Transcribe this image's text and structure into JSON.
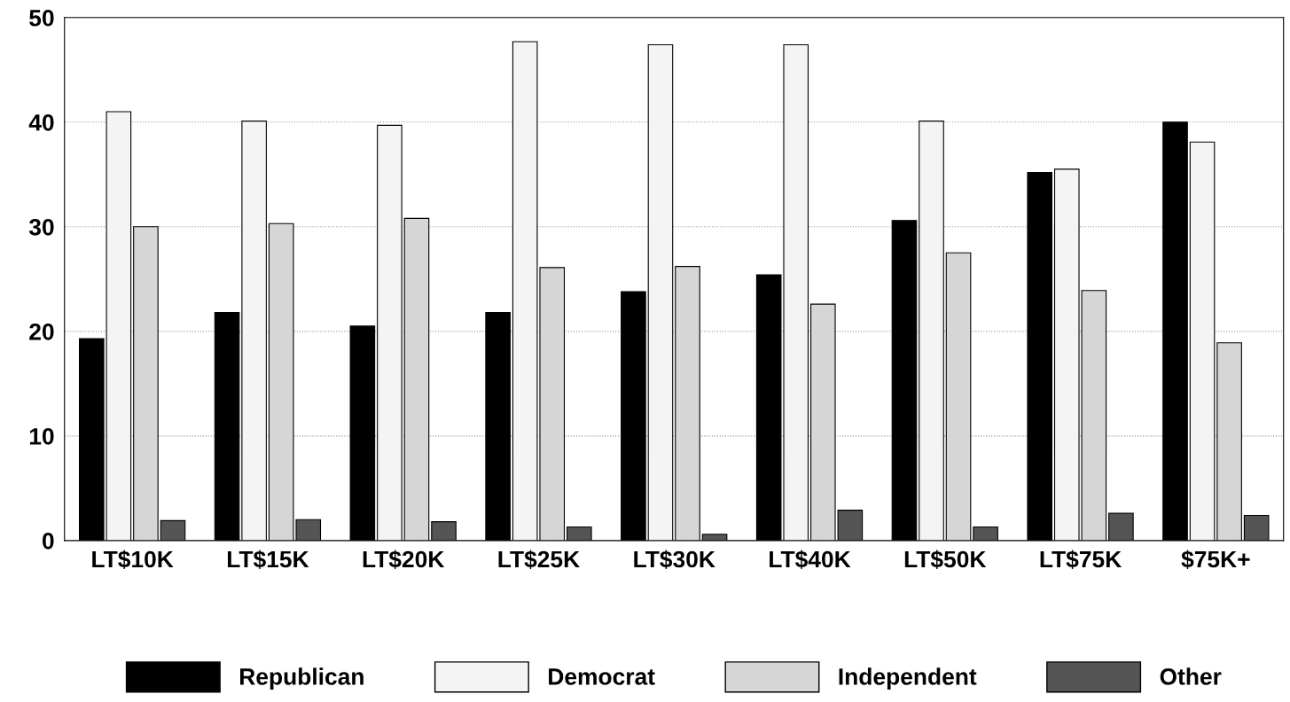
{
  "chart_data": {
    "type": "bar",
    "categories": [
      "LT$10K",
      "LT$15K",
      "LT$20K",
      "LT$25K",
      "LT$30K",
      "LT$40K",
      "LT$50K",
      "LT$75K",
      "$75K+"
    ],
    "series": [
      {
        "name": "Republican",
        "color": "#000000",
        "values": [
          19.3,
          21.8,
          20.5,
          21.8,
          23.8,
          25.4,
          30.6,
          35.2,
          40.0
        ]
      },
      {
        "name": "Democrat",
        "color": "#f4f4f4",
        "values": [
          41.0,
          40.1,
          39.7,
          47.7,
          47.4,
          47.4,
          40.1,
          35.5,
          38.1
        ]
      },
      {
        "name": "Independent",
        "color": "#d6d6d6",
        "values": [
          30.0,
          30.3,
          30.8,
          26.1,
          26.2,
          22.6,
          27.5,
          23.9,
          18.9
        ]
      },
      {
        "name": "Other",
        "color": "#555555",
        "values": [
          1.9,
          2.0,
          1.8,
          1.3,
          0.6,
          2.9,
          1.3,
          2.6,
          2.4
        ]
      }
    ],
    "ylim": [
      0,
      50
    ],
    "yticks": [
      0,
      10,
      20,
      30,
      40,
      50
    ],
    "grid": "y",
    "legend": "bottom"
  }
}
